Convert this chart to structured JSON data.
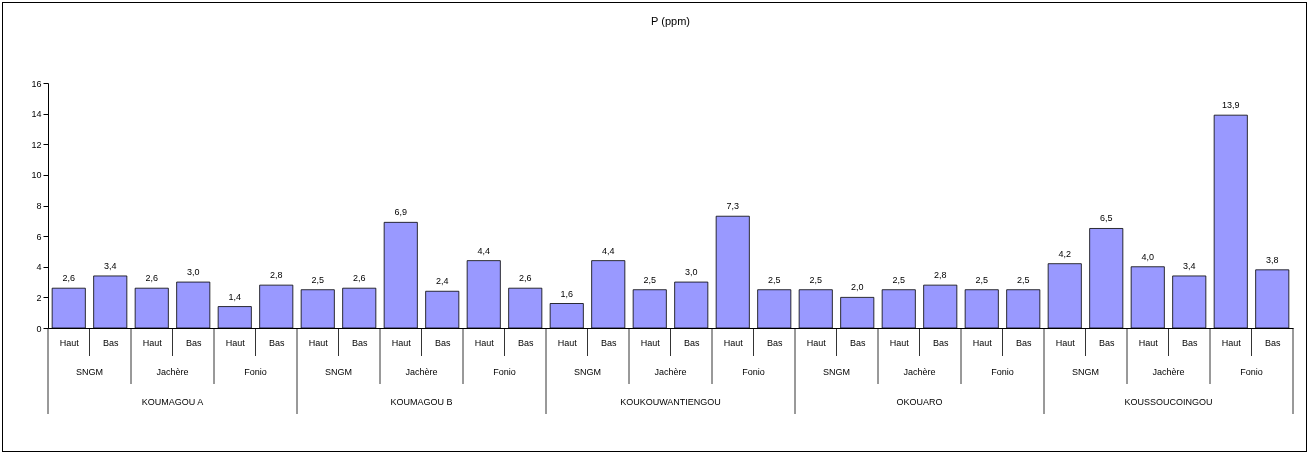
{
  "chart_data": {
    "type": "bar",
    "title": "P (ppm)",
    "categories": [
      "Haut",
      "Bas",
      "Haut",
      "Bas",
      "Haut",
      "Bas",
      "Haut",
      "Bas",
      "Haut",
      "Bas",
      "Haut",
      "Bas",
      "Haut",
      "Bas",
      "Haut",
      "Bas",
      "Haut",
      "Bas",
      "Haut",
      "Bas",
      "Haut",
      "Bas",
      "Haut",
      "Bas",
      "Haut",
      "Bas",
      "Haut",
      "Bas",
      "Haut",
      "Bas"
    ],
    "values": [
      2.6,
      3.4,
      2.6,
      3.0,
      1.4,
      2.8,
      2.5,
      2.6,
      6.9,
      2.4,
      4.4,
      2.6,
      1.6,
      4.4,
      2.5,
      3.0,
      7.3,
      2.5,
      2.5,
      2.0,
      2.5,
      2.8,
      2.5,
      2.5,
      4.2,
      6.5,
      4.0,
      3.4,
      13.9,
      3.8
    ],
    "value_labels": [
      "2,6",
      "3,4",
      "2,6",
      "3,0",
      "1,4",
      "2,8",
      "2,5",
      "2,6",
      "6,9",
      "2,4",
      "4,4",
      "2,6",
      "1,6",
      "4,4",
      "2,5",
      "3,0",
      "7,3",
      "2,5",
      "2,5",
      "2,0",
      "2,5",
      "2,8",
      "2,5",
      "2,5",
      "4,2",
      "6,5",
      "4,0",
      "3,4",
      "13,9",
      "3,8"
    ],
    "color": "#9999ff",
    "ylim": [
      0,
      16
    ],
    "yticks": [
      0,
      2,
      4,
      6,
      8,
      10,
      12,
      14,
      16
    ],
    "grid": false,
    "annotations": [
      "SNGM",
      "Jachère",
      "Fonio",
      "SNGM",
      "Jachère",
      "Fonio",
      "SNGM",
      "Jachère",
      "Fonio",
      "SNGM",
      "Jachère",
      "Fonio",
      "SNGM",
      "Jachère",
      "Fonio",
      "KOUMAGOU A",
      "KOUMAGOU B",
      "KOUKOUWANTIENGOU",
      "OKOUARO",
      "KOUSSOUCOINGOU"
    ]
  }
}
